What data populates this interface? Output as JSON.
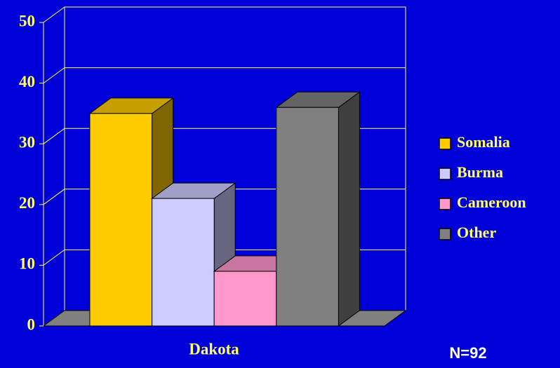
{
  "chart_data": {
    "type": "bar3d",
    "categories": [
      "Dakota"
    ],
    "series": [
      {
        "name": "Somalia",
        "color": "#ffcc00",
        "values": [
          35
        ]
      },
      {
        "name": "Burma",
        "color": "#ccccff",
        "values": [
          21
        ]
      },
      {
        "name": "Cameroon",
        "color": "#ff99cc",
        "values": [
          9
        ]
      },
      {
        "name": "Other",
        "color": "#808080",
        "values": [
          36
        ]
      }
    ],
    "ylim": [
      0,
      50
    ],
    "yticks": [
      0,
      10,
      20,
      30,
      40,
      50
    ],
    "grid": true,
    "legend": "right",
    "annotation": "N=92"
  }
}
